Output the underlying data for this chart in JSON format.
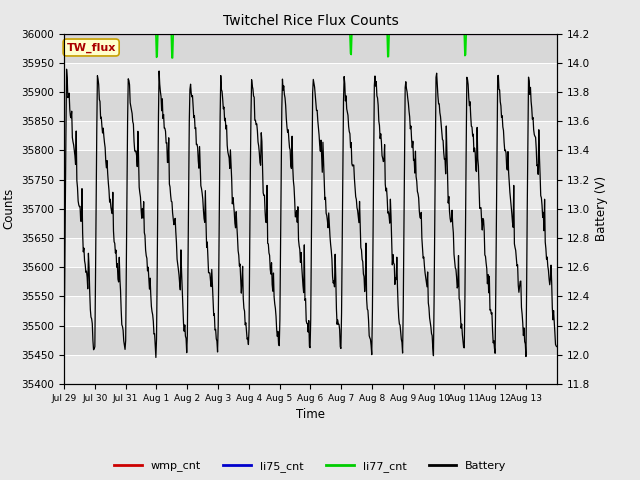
{
  "title": "Twitchel Rice Flux Counts",
  "xlabel": "Time",
  "ylabel_left": "Counts",
  "ylabel_right": "Battery (V)",
  "ylim_left": [
    35400,
    36000
  ],
  "ylim_right": [
    11.8,
    14.2
  ],
  "yticks_left": [
    35400,
    35450,
    35500,
    35550,
    35600,
    35650,
    35700,
    35750,
    35800,
    35850,
    35900,
    35950,
    36000
  ],
  "yticks_right": [
    11.8,
    12.0,
    12.2,
    12.4,
    12.6,
    12.8,
    13.0,
    13.2,
    13.4,
    13.6,
    13.8,
    14.0,
    14.2
  ],
  "xtick_labels": [
    "Jul 29",
    "Jul 30",
    "Jul 31",
    "Aug 1",
    "Aug 2",
    "Aug 3",
    "Aug 4",
    "Aug 5",
    "Aug 6",
    "Aug 7",
    "Aug 8",
    "Aug 9",
    "Aug 10",
    "Aug 11",
    "Aug 12",
    "Aug 13"
  ],
  "bg_color": "#e8e8e8",
  "plot_bg_light": "#ebebeb",
  "plot_bg_dark": "#d8d8d8",
  "annotation_box_text": "TW_flux",
  "annotation_box_color": "#ffffcc",
  "annotation_box_edge": "#c8a000",
  "legend_labels": [
    "wmp_cnt",
    "li75_cnt",
    "li77_cnt",
    "Battery"
  ],
  "legend_colors": [
    "#cc0000",
    "#0000cc",
    "#00cc00",
    "#000000"
  ],
  "li77_color": "#00dd00",
  "battery_color": "#000000",
  "wmp_color": "#cc0000",
  "li75_color": "#0000cc",
  "n_days": 16,
  "pts_per_day": 48
}
